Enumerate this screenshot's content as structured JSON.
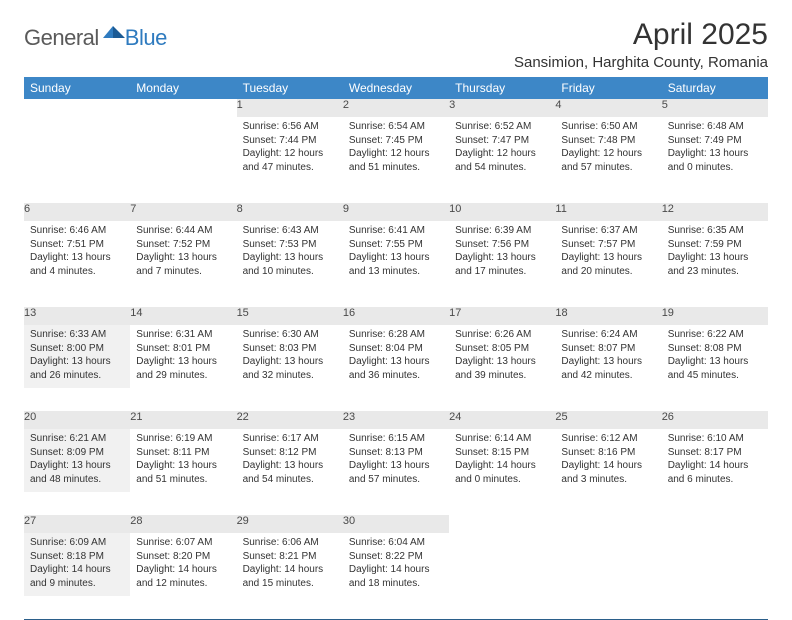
{
  "logo": {
    "general": "General",
    "blue": "Blue"
  },
  "title": "April 2025",
  "location": "Sansimion, Harghita County, Romania",
  "day_headers": [
    "Sunday",
    "Monday",
    "Tuesday",
    "Wednesday",
    "Thursday",
    "Friday",
    "Saturday"
  ],
  "colors": {
    "header_bg": "#3d87c7",
    "rule": "#2b5f8a",
    "shade": "#f1f1f1",
    "daynum_bg": "#e9e9e9"
  },
  "weeks": [
    [
      {
        "n": "",
        "empty": true
      },
      {
        "n": "",
        "empty": true
      },
      {
        "n": "1",
        "sr": "Sunrise: 6:56 AM",
        "ss": "Sunset: 7:44 PM",
        "dl1": "Daylight: 12 hours",
        "dl2": "and 47 minutes."
      },
      {
        "n": "2",
        "sr": "Sunrise: 6:54 AM",
        "ss": "Sunset: 7:45 PM",
        "dl1": "Daylight: 12 hours",
        "dl2": "and 51 minutes."
      },
      {
        "n": "3",
        "sr": "Sunrise: 6:52 AM",
        "ss": "Sunset: 7:47 PM",
        "dl1": "Daylight: 12 hours",
        "dl2": "and 54 minutes."
      },
      {
        "n": "4",
        "sr": "Sunrise: 6:50 AM",
        "ss": "Sunset: 7:48 PM",
        "dl1": "Daylight: 12 hours",
        "dl2": "and 57 minutes."
      },
      {
        "n": "5",
        "sr": "Sunrise: 6:48 AM",
        "ss": "Sunset: 7:49 PM",
        "dl1": "Daylight: 13 hours",
        "dl2": "and 0 minutes."
      }
    ],
    [
      {
        "n": "6",
        "sr": "Sunrise: 6:46 AM",
        "ss": "Sunset: 7:51 PM",
        "dl1": "Daylight: 13 hours",
        "dl2": "and 4 minutes."
      },
      {
        "n": "7",
        "sr": "Sunrise: 6:44 AM",
        "ss": "Sunset: 7:52 PM",
        "dl1": "Daylight: 13 hours",
        "dl2": "and 7 minutes."
      },
      {
        "n": "8",
        "sr": "Sunrise: 6:43 AM",
        "ss": "Sunset: 7:53 PM",
        "dl1": "Daylight: 13 hours",
        "dl2": "and 10 minutes."
      },
      {
        "n": "9",
        "sr": "Sunrise: 6:41 AM",
        "ss": "Sunset: 7:55 PM",
        "dl1": "Daylight: 13 hours",
        "dl2": "and 13 minutes."
      },
      {
        "n": "10",
        "sr": "Sunrise: 6:39 AM",
        "ss": "Sunset: 7:56 PM",
        "dl1": "Daylight: 13 hours",
        "dl2": "and 17 minutes."
      },
      {
        "n": "11",
        "sr": "Sunrise: 6:37 AM",
        "ss": "Sunset: 7:57 PM",
        "dl1": "Daylight: 13 hours",
        "dl2": "and 20 minutes."
      },
      {
        "n": "12",
        "sr": "Sunrise: 6:35 AM",
        "ss": "Sunset: 7:59 PM",
        "dl1": "Daylight: 13 hours",
        "dl2": "and 23 minutes."
      }
    ],
    [
      {
        "n": "13",
        "sr": "Sunrise: 6:33 AM",
        "ss": "Sunset: 8:00 PM",
        "dl1": "Daylight: 13 hours",
        "dl2": "and 26 minutes.",
        "shaded": true
      },
      {
        "n": "14",
        "sr": "Sunrise: 6:31 AM",
        "ss": "Sunset: 8:01 PM",
        "dl1": "Daylight: 13 hours",
        "dl2": "and 29 minutes."
      },
      {
        "n": "15",
        "sr": "Sunrise: 6:30 AM",
        "ss": "Sunset: 8:03 PM",
        "dl1": "Daylight: 13 hours",
        "dl2": "and 32 minutes."
      },
      {
        "n": "16",
        "sr": "Sunrise: 6:28 AM",
        "ss": "Sunset: 8:04 PM",
        "dl1": "Daylight: 13 hours",
        "dl2": "and 36 minutes."
      },
      {
        "n": "17",
        "sr": "Sunrise: 6:26 AM",
        "ss": "Sunset: 8:05 PM",
        "dl1": "Daylight: 13 hours",
        "dl2": "and 39 minutes."
      },
      {
        "n": "18",
        "sr": "Sunrise: 6:24 AM",
        "ss": "Sunset: 8:07 PM",
        "dl1": "Daylight: 13 hours",
        "dl2": "and 42 minutes."
      },
      {
        "n": "19",
        "sr": "Sunrise: 6:22 AM",
        "ss": "Sunset: 8:08 PM",
        "dl1": "Daylight: 13 hours",
        "dl2": "and 45 minutes."
      }
    ],
    [
      {
        "n": "20",
        "sr": "Sunrise: 6:21 AM",
        "ss": "Sunset: 8:09 PM",
        "dl1": "Daylight: 13 hours",
        "dl2": "and 48 minutes.",
        "shaded": true
      },
      {
        "n": "21",
        "sr": "Sunrise: 6:19 AM",
        "ss": "Sunset: 8:11 PM",
        "dl1": "Daylight: 13 hours",
        "dl2": "and 51 minutes."
      },
      {
        "n": "22",
        "sr": "Sunrise: 6:17 AM",
        "ss": "Sunset: 8:12 PM",
        "dl1": "Daylight: 13 hours",
        "dl2": "and 54 minutes."
      },
      {
        "n": "23",
        "sr": "Sunrise: 6:15 AM",
        "ss": "Sunset: 8:13 PM",
        "dl1": "Daylight: 13 hours",
        "dl2": "and 57 minutes."
      },
      {
        "n": "24",
        "sr": "Sunrise: 6:14 AM",
        "ss": "Sunset: 8:15 PM",
        "dl1": "Daylight: 14 hours",
        "dl2": "and 0 minutes."
      },
      {
        "n": "25",
        "sr": "Sunrise: 6:12 AM",
        "ss": "Sunset: 8:16 PM",
        "dl1": "Daylight: 14 hours",
        "dl2": "and 3 minutes."
      },
      {
        "n": "26",
        "sr": "Sunrise: 6:10 AM",
        "ss": "Sunset: 8:17 PM",
        "dl1": "Daylight: 14 hours",
        "dl2": "and 6 minutes."
      }
    ],
    [
      {
        "n": "27",
        "sr": "Sunrise: 6:09 AM",
        "ss": "Sunset: 8:18 PM",
        "dl1": "Daylight: 14 hours",
        "dl2": "and 9 minutes.",
        "shaded": true
      },
      {
        "n": "28",
        "sr": "Sunrise: 6:07 AM",
        "ss": "Sunset: 8:20 PM",
        "dl1": "Daylight: 14 hours",
        "dl2": "and 12 minutes."
      },
      {
        "n": "29",
        "sr": "Sunrise: 6:06 AM",
        "ss": "Sunset: 8:21 PM",
        "dl1": "Daylight: 14 hours",
        "dl2": "and 15 minutes."
      },
      {
        "n": "30",
        "sr": "Sunrise: 6:04 AM",
        "ss": "Sunset: 8:22 PM",
        "dl1": "Daylight: 14 hours",
        "dl2": "and 18 minutes."
      },
      {
        "n": "",
        "empty": true
      },
      {
        "n": "",
        "empty": true
      },
      {
        "n": "",
        "empty": true
      }
    ]
  ]
}
